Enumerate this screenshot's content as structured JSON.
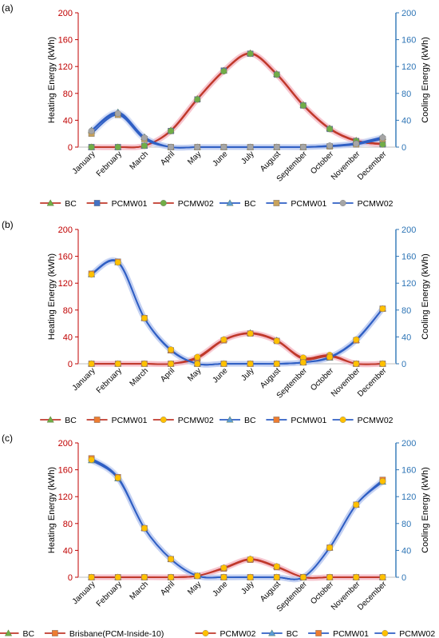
{
  "figure": {
    "months": [
      "January",
      "February",
      "March",
      "April",
      "May",
      "June",
      "July",
      "August",
      "September",
      "October",
      "November",
      "December"
    ],
    "left_axis_label": "Heating Energy (kWh)",
    "right_axis_label": "Cooling Energy (kWh)",
    "yticks": [
      0,
      40,
      80,
      120,
      160,
      200
    ],
    "colors": {
      "heating_axis": "#c00000",
      "cooling_axis": "#2e75b6",
      "heating_line": "#c0392b",
      "cooling_line": "#2f5fc4"
    }
  },
  "chart_data": [
    {
      "panel_label": "(a)",
      "type": "line",
      "categories": [
        "January",
        "February",
        "March",
        "April",
        "May",
        "June",
        "July",
        "August",
        "September",
        "October",
        "November",
        "December"
      ],
      "ylim_left": [
        0,
        200
      ],
      "ylim_right": [
        0,
        200
      ],
      "ylabel_left": "Heating Energy (kWh)",
      "ylabel_right": "Cooling Energy (kWh)",
      "legend_position": "bottom",
      "series": [
        {
          "name": "BC",
          "axis": "left",
          "color": "#c0392b",
          "marker": "triangle",
          "marker_color": "#70ad47",
          "values": [
            0,
            0,
            2,
            25,
            72,
            114,
            140,
            109,
            63,
            28,
            10,
            5
          ]
        },
        {
          "name": "PCMW01",
          "axis": "left",
          "color": "#c0392b",
          "marker": "square",
          "marker_color": "#4472c4",
          "values": [
            0,
            0,
            2,
            24,
            71,
            114,
            139,
            108,
            62,
            27,
            9,
            4
          ]
        },
        {
          "name": "PCMW02",
          "axis": "left",
          "color": "#c0392b",
          "marker": "circle",
          "marker_color": "#70ad47",
          "values": [
            0,
            0,
            2,
            24,
            71,
            113,
            139,
            108,
            62,
            27,
            9,
            4
          ]
        },
        {
          "name": "BC",
          "axis": "right",
          "color": "#2f5fc4",
          "marker": "triangle",
          "marker_color": "#5b9bd5",
          "values": [
            25,
            52,
            15,
            0,
            0,
            0,
            0,
            0,
            0,
            2,
            6,
            15
          ]
        },
        {
          "name": "PCMW01",
          "axis": "right",
          "color": "#2f5fc4",
          "marker": "square",
          "marker_color": "#c9a35c",
          "values": [
            20,
            48,
            12,
            0,
            0,
            0,
            0,
            0,
            0,
            1,
            4,
            12
          ]
        },
        {
          "name": "PCMW02",
          "axis": "right",
          "color": "#2f5fc4",
          "marker": "circle",
          "marker_color": "#a5a5a5",
          "values": [
            24,
            50,
            14,
            0,
            0,
            0,
            0,
            0,
            0,
            2,
            5,
            14
          ]
        }
      ],
      "legend": [
        {
          "label": "BC",
          "line": "#c0392b",
          "marker": "triangle",
          "marker_color": "#70ad47"
        },
        {
          "label": "PCMW01",
          "line": "#c0392b",
          "marker": "square",
          "marker_color": "#4472c4"
        },
        {
          "label": "PCMW02",
          "line": "#c0392b",
          "marker": "circle",
          "marker_color": "#70ad47"
        },
        {
          "label": "BC",
          "line": "#2f5fc4",
          "marker": "triangle",
          "marker_color": "#5b9bd5"
        },
        {
          "label": "PCMW01",
          "line": "#2f5fc4",
          "marker": "square",
          "marker_color": "#c9a35c"
        },
        {
          "label": "PCMW02",
          "line": "#2f5fc4",
          "marker": "circle",
          "marker_color": "#a5a5a5"
        }
      ]
    },
    {
      "panel_label": "(b)",
      "type": "line",
      "categories": [
        "January",
        "February",
        "March",
        "April",
        "May",
        "June",
        "July",
        "August",
        "September",
        "October",
        "November",
        "December"
      ],
      "ylim_left": [
        0,
        200
      ],
      "ylim_right": [
        0,
        200
      ],
      "ylabel_left": "Heating Energy (kWh)",
      "ylabel_right": "Cooling Energy (kWh)",
      "legend_position": "bottom",
      "series": [
        {
          "name": "BC",
          "axis": "left",
          "color": "#c0392b",
          "marker": "triangle",
          "marker_color": "#70ad47",
          "values": [
            0,
            0,
            0,
            0,
            9,
            36,
            46,
            35,
            8,
            12,
            0,
            0
          ]
        },
        {
          "name": "PCMW01",
          "axis": "left",
          "color": "#c0392b",
          "marker": "square",
          "marker_color": "#ed7d31",
          "values": [
            0,
            0,
            0,
            0,
            8,
            35,
            45,
            34,
            7,
            11,
            0,
            0
          ]
        },
        {
          "name": "PCMW02",
          "axis": "left",
          "color": "#c0392b",
          "marker": "circle",
          "marker_color": "#ffc000",
          "values": [
            0,
            0,
            0,
            0,
            10,
            36,
            45,
            34,
            9,
            13,
            0,
            0
          ]
        },
        {
          "name": "BC",
          "axis": "right",
          "color": "#2f5fc4",
          "marker": "triangle",
          "marker_color": "#5b9bd5",
          "values": [
            133,
            151,
            68,
            20,
            0,
            0,
            0,
            0,
            2,
            9,
            35,
            82
          ]
        },
        {
          "name": "PCMW01",
          "axis": "right",
          "color": "#2f5fc4",
          "marker": "square",
          "marker_color": "#ed7d31",
          "values": [
            134,
            152,
            68,
            20,
            0,
            0,
            0,
            0,
            2,
            10,
            35,
            82
          ]
        },
        {
          "name": "PCMW02",
          "axis": "right",
          "color": "#2f5fc4",
          "marker": "circle",
          "marker_color": "#ffc000",
          "values": [
            133,
            151,
            68,
            21,
            0,
            0,
            0,
            0,
            2,
            10,
            36,
            82
          ]
        }
      ],
      "legend": [
        {
          "label": "BC",
          "line": "#c0392b",
          "marker": "triangle",
          "marker_color": "#70ad47"
        },
        {
          "label": "PCMW01",
          "line": "#c0392b",
          "marker": "square",
          "marker_color": "#ed7d31"
        },
        {
          "label": "PCMW02",
          "line": "#c0392b",
          "marker": "circle",
          "marker_color": "#ffc000"
        },
        {
          "label": "BC",
          "line": "#2f5fc4",
          "marker": "triangle",
          "marker_color": "#5b9bd5"
        },
        {
          "label": "PCMW01",
          "line": "#2f5fc4",
          "marker": "square",
          "marker_color": "#ed7d31"
        },
        {
          "label": "PCMW02",
          "line": "#2f5fc4",
          "marker": "circle",
          "marker_color": "#ffc000"
        }
      ]
    },
    {
      "panel_label": "(c)",
      "type": "line",
      "categories": [
        "January",
        "February",
        "March",
        "April",
        "May",
        "June",
        "July",
        "August",
        "September",
        "October",
        "November",
        "December"
      ],
      "ylim_left": [
        0,
        200
      ],
      "ylim_right": [
        0,
        200
      ],
      "ylabel_left": "Heating Energy (kWh)",
      "ylabel_right": "Cooling Energy (kWh)",
      "legend_position": "bottom",
      "series": [
        {
          "name": "BC",
          "axis": "left",
          "color": "#c0392b",
          "marker": "triangle",
          "marker_color": "#70ad47",
          "values": [
            0,
            0,
            0,
            0,
            2,
            14,
            27,
            16,
            0,
            0,
            0,
            0
          ]
        },
        {
          "name": "Brisbane(PCM-Inside-10)",
          "axis": "left",
          "color": "#c0392b",
          "marker": "square",
          "marker_color": "#ed7d31",
          "values": [
            0,
            0,
            0,
            0,
            2,
            13,
            26,
            15,
            0,
            0,
            0,
            0
          ]
        },
        {
          "name": "PCMW02",
          "axis": "left",
          "color": "#c0392b",
          "marker": "circle",
          "marker_color": "#ffc000",
          "values": [
            0,
            0,
            0,
            0,
            2,
            14,
            27,
            16,
            0,
            0,
            0,
            0
          ]
        },
        {
          "name": "BC",
          "axis": "right",
          "color": "#2f5fc4",
          "marker": "triangle",
          "marker_color": "#5b9bd5",
          "values": [
            174,
            147,
            73,
            27,
            2,
            0,
            0,
            0,
            0,
            44,
            108,
            142
          ]
        },
        {
          "name": "PCMW01",
          "axis": "right",
          "color": "#2f5fc4",
          "marker": "square",
          "marker_color": "#ed7d31",
          "values": [
            177,
            149,
            73,
            27,
            2,
            0,
            0,
            0,
            0,
            44,
            108,
            145
          ]
        },
        {
          "name": "PCMW02",
          "axis": "right",
          "color": "#2f5fc4",
          "marker": "circle",
          "marker_color": "#ffc000",
          "values": [
            175,
            148,
            73,
            27,
            2,
            0,
            0,
            0,
            0,
            44,
            108,
            143
          ]
        }
      ],
      "legend": [
        {
          "label": "BC",
          "line": "#c0392b",
          "marker": "triangle",
          "marker_color": "#70ad47"
        },
        {
          "label": "Brisbane(PCM-Inside-10)",
          "line": "#c0392b",
          "marker": "square",
          "marker_color": "#ed7d31"
        },
        {
          "label": "PCMW02",
          "line": "#c0392b",
          "marker": "circle",
          "marker_color": "#ffc000"
        },
        {
          "label": "BC",
          "line": "#2f5fc4",
          "marker": "triangle",
          "marker_color": "#5b9bd5"
        },
        {
          "label": "PCMW01",
          "line": "#2f5fc4",
          "marker": "square",
          "marker_color": "#ed7d31"
        },
        {
          "label": "PCMW02",
          "line": "#2f5fc4",
          "marker": "circle",
          "marker_color": "#ffc000"
        }
      ]
    }
  ]
}
